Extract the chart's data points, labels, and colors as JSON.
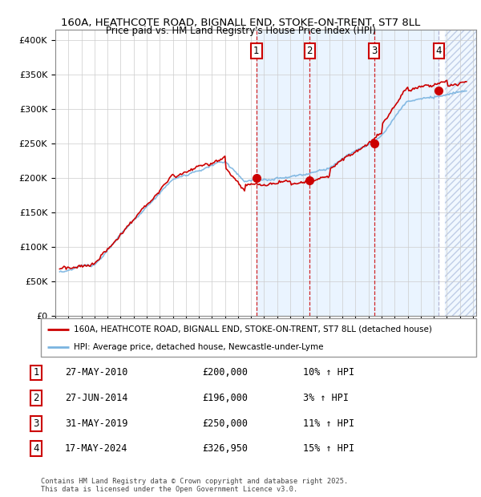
{
  "title_line1": "160A, HEATHCOTE ROAD, BIGNALL END, STOKE-ON-TRENT, ST7 8LL",
  "title_line2": "Price paid vs. HM Land Registry's House Price Index (HPI)",
  "ytick_values": [
    0,
    50000,
    100000,
    150000,
    200000,
    250000,
    300000,
    350000,
    400000
  ],
  "ylim": [
    0,
    415000
  ],
  "xlim_start": 1995.25,
  "xlim_end": 2027.25,
  "sale_dates": [
    2010.41,
    2014.49,
    2019.42,
    2024.38
  ],
  "sale_prices": [
    200000,
    196000,
    250000,
    326950
  ],
  "sale_labels": [
    "1",
    "2",
    "3",
    "4"
  ],
  "legend_line1": "160A, HEATHCOTE ROAD, BIGNALL END, STOKE-ON-TRENT, ST7 8LL (detached house)",
  "legend_line2": "HPI: Average price, detached house, Newcastle-under-Lyme",
  "table_entries": [
    {
      "num": "1",
      "date": "27-MAY-2010",
      "price": "£200,000",
      "hpi": "10% ↑ HPI"
    },
    {
      "num": "2",
      "date": "27-JUN-2014",
      "price": "£196,000",
      "hpi": "3% ↑ HPI"
    },
    {
      "num": "3",
      "date": "31-MAY-2019",
      "price": "£250,000",
      "hpi": "11% ↑ HPI"
    },
    {
      "num": "4",
      "date": "17-MAY-2024",
      "price": "£326,950",
      "hpi": "15% ↑ HPI"
    }
  ],
  "footer": "Contains HM Land Registry data © Crown copyright and database right 2025.\nThis data is licensed under the Open Government Licence v3.0.",
  "hpi_color": "#7ab4e0",
  "price_color": "#cc0000",
  "sale_line_color_red": "#cc0000",
  "sale_line_color_gray": "#aaaacc",
  "bg_shade_color": "#ddeeff",
  "grid_color": "#cccccc",
  "shade_zone_start": 2010.41,
  "shade_zone_end": 2024.38,
  "hatch_zone_start": 2024.83,
  "hatch_zone_end": 2027.25
}
